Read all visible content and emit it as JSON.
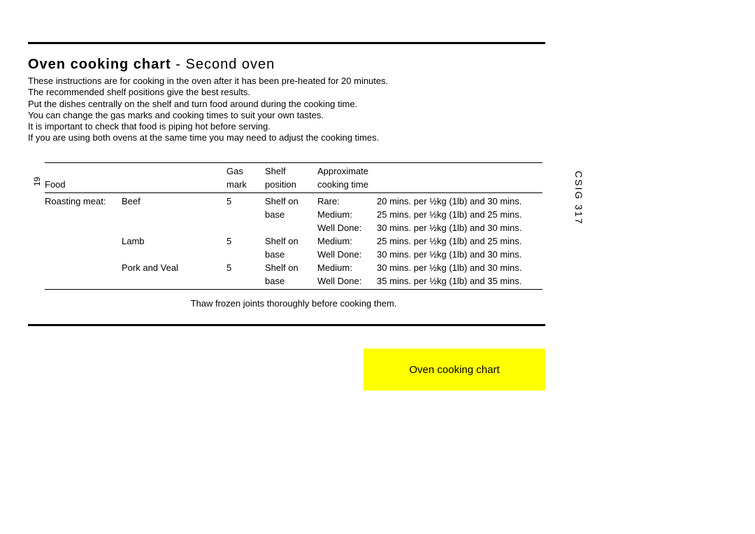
{
  "title_bold": "Oven cooking chart",
  "title_sep": " - ",
  "title_light": "Second oven",
  "intro_lines": [
    "These instructions are for cooking in the oven after it has been pre-heated for 20 minutes.",
    "The recommended shelf positions give the best results.",
    "Put the dishes centrally on the shelf and turn food around during the cooking time.",
    "You can change the gas marks and cooking times to suit your own tastes.",
    "It is important to check that food is piping hot before serving.",
    "If you are using both ovens at the same time you may need to adjust the cooking times."
  ],
  "page_number": "19",
  "model_code": "CSIG 317",
  "header": {
    "food": "Food",
    "gas1": "Gas",
    "gas2": "mark",
    "shelf1": "Shelf",
    "shelf2": "position",
    "approx1": "Approximate",
    "approx2": "cooking time"
  },
  "section_label": "Roasting meat:",
  "rows": [
    {
      "sub": "Beef",
      "gas": "5",
      "shelf": [
        "Shelf on",
        "base"
      ],
      "doneness": [
        "Rare:",
        "Medium:",
        "Well Done:"
      ],
      "times": [
        "20 mins. per ½kg (1lb) and 30 mins.",
        "25 mins. per ½kg (1lb) and 25 mins.",
        "30 mins. per ½kg (1lb) and 30 mins."
      ]
    },
    {
      "sub": "Lamb",
      "gas": "5",
      "shelf": [
        "Shelf on",
        "base"
      ],
      "doneness": [
        "Medium:",
        "Well Done:"
      ],
      "times": [
        "25 mins. per ½kg (1lb) and 25 mins.",
        "30 mins. per ½kg (1lb) and 30 mins."
      ]
    },
    {
      "sub": "Pork and Veal",
      "gas": "5",
      "shelf": [
        "Shelf on",
        "base"
      ],
      "doneness": [
        "Medium:",
        "Well Done:"
      ],
      "times": [
        "30 mins. per ½kg (1lb) and 30 mins.",
        "35 mins. per ½kg (1lb) and 35 mins."
      ]
    }
  ],
  "footnote": "Thaw frozen joints thoroughly before cooking them.",
  "tab_label": "Oven cooking chart",
  "colors": {
    "text": "#000000",
    "background": "#ffffff",
    "highlight": "#ffff00"
  }
}
